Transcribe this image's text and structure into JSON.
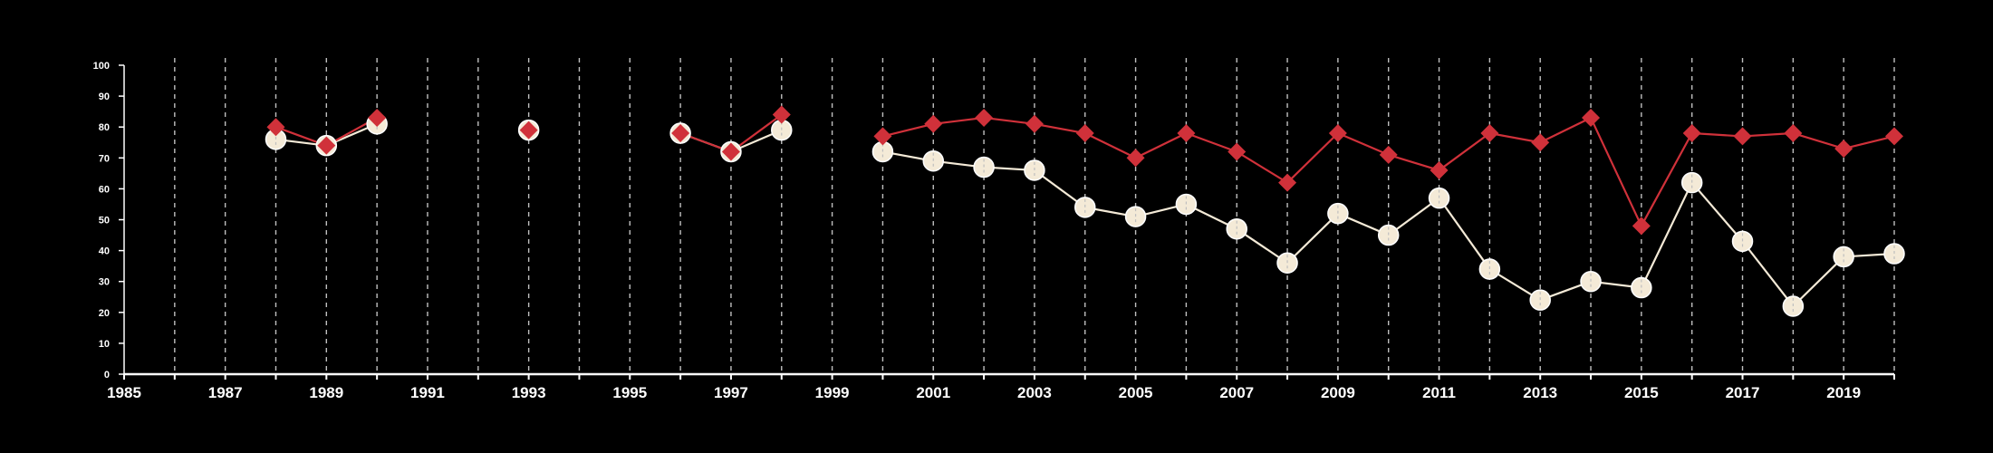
{
  "chart_data": {
    "type": "line",
    "title": "",
    "xlabel": "",
    "ylabel": "",
    "xlim": [
      1985,
      2020
    ],
    "ylim": [
      0,
      100
    ],
    "x_ticks": [
      1985,
      1986,
      1987,
      1988,
      1989,
      1990,
      1991,
      1992,
      1993,
      1994,
      1995,
      1996,
      1997,
      1998,
      1999,
      2000,
      2001,
      2002,
      2003,
      2004,
      2005,
      2006,
      2007,
      2008,
      2009,
      2010,
      2011,
      2012,
      2013,
      2014,
      2015,
      2016,
      2017,
      2018,
      2019,
      2020
    ],
    "x_tick_labels": [
      "1985",
      "1987",
      "1989",
      "1991",
      "1993",
      "1995",
      "1997",
      "1999",
      "2001",
      "2003",
      "2005",
      "2007",
      "2009",
      "2011",
      "2013",
      "2015",
      "2017",
      "2019"
    ],
    "y_ticks": [
      0,
      10,
      20,
      30,
      40,
      50,
      60,
      70,
      80,
      90,
      100
    ],
    "y_tick_labels": [
      "0",
      "10",
      "20",
      "30",
      "40",
      "50",
      "60",
      "70",
      "80",
      "90",
      "100"
    ],
    "grid": {
      "vertical": true,
      "horizontal": false,
      "style": "dashed"
    },
    "legend": "none",
    "series": [
      {
        "color": "#d0313a",
        "marker": "diamond",
        "x": [
          1988,
          1989,
          1990,
          1993,
          1996,
          1997,
          1998,
          2000,
          2001,
          2002,
          2003,
          2004,
          2005,
          2006,
          2007,
          2008,
          2009,
          2010,
          2011,
          2012,
          2013,
          2014,
          2015,
          2016,
          2017,
          2018,
          2019,
          2020
        ],
        "values": [
          80,
          74,
          83,
          79,
          78,
          72,
          84,
          77,
          81,
          83,
          81,
          78,
          70,
          78,
          72,
          62,
          78,
          71,
          66,
          78,
          75,
          83,
          48,
          78,
          77,
          78,
          73,
          77
        ]
      },
      {
        "color": "#f4ead7",
        "marker": "circle",
        "x": [
          1988,
          1989,
          1990,
          1993,
          1996,
          1997,
          1998,
          2000,
          2001,
          2002,
          2003,
          2004,
          2005,
          2006,
          2007,
          2008,
          2009,
          2010,
          2011,
          2012,
          2013,
          2014,
          2015,
          2016,
          2017,
          2018,
          2019,
          2020
        ],
        "values": [
          76,
          74,
          81,
          79,
          78,
          72,
          79,
          72,
          69,
          67,
          66,
          54,
          51,
          55,
          47,
          36,
          52,
          45,
          57,
          34,
          24,
          30,
          28,
          62,
          43,
          22,
          38,
          39
        ]
      }
    ]
  },
  "colors": {
    "background": "#000000",
    "axis": "#ffffff",
    "grid": "#bfbfbf"
  }
}
